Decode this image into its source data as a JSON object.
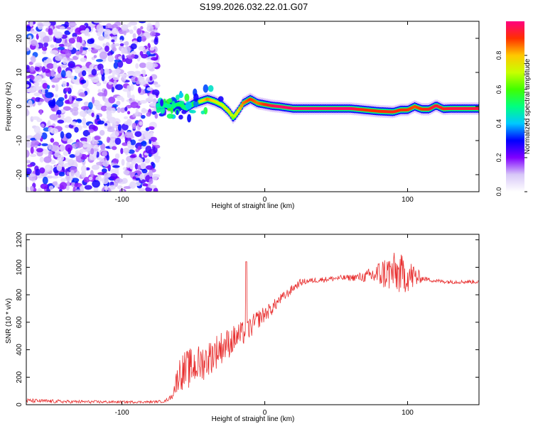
{
  "title": "S199.2026.032.22.01.G07",
  "chart_data": [
    {
      "type": "heatmap",
      "name": "spectrogram",
      "xlabel": "Height of straight line (km)",
      "ylabel": "Frequency (Hz)",
      "xlim": [
        -167,
        150
      ],
      "ylim": [
        -25,
        25
      ],
      "xticks": [
        -100,
        0,
        100
      ],
      "xtick_labels": [
        "-100",
        "0",
        "100"
      ],
      "yticks": [
        -20,
        -10,
        0,
        10,
        20
      ],
      "ytick_labels": [
        "-20",
        "-10",
        "0",
        "10",
        "20"
      ],
      "noise_region_x": [
        -167,
        -75
      ],
      "ridge": {
        "x": [
          -75,
          -70,
          -65,
          -60,
          -55,
          -50,
          -45,
          -40,
          -35,
          -30,
          -25,
          -22,
          -18,
          -15,
          -10,
          -5,
          0,
          5,
          10,
          20,
          40,
          60,
          70,
          80,
          90,
          95,
          100,
          105,
          110,
          115,
          120,
          125,
          130,
          140,
          150
        ],
        "y": [
          0.2,
          0.5,
          -0.2,
          0.6,
          -0.5,
          0.8,
          1.5,
          2.2,
          1.5,
          0.5,
          -1.5,
          -3.3,
          -1.0,
          1.0,
          2.2,
          1.0,
          0.6,
          0.2,
          0,
          -0.6,
          -0.6,
          -0.6,
          -1.0,
          -1.4,
          -1.6,
          -1.0,
          -1.0,
          0.0,
          -0.8,
          -0.8,
          0.3,
          -0.7,
          -0.6,
          -0.6,
          -0.6
        ],
        "amp": [
          0.45,
          0.5,
          0.45,
          0.55,
          0.5,
          0.55,
          0.7,
          0.85,
          0.75,
          0.7,
          0.75,
          0.65,
          0.8,
          0.85,
          0.9,
          0.85,
          0.9,
          0.95,
          0.98,
          0.98,
          0.98,
          0.98,
          0.9,
          0.9,
          0.92,
          0.9,
          0.9,
          0.88,
          0.9,
          0.92,
          0.95,
          0.92,
          0.95,
          0.95,
          0.95
        ]
      },
      "colorbar": {
        "label": "Normalized spectral amplitude",
        "range": [
          0,
          1
        ],
        "ticks": [
          0.0,
          0.2,
          0.4,
          0.6,
          0.8
        ],
        "tick_labels": [
          "0.0",
          "0.2",
          "0.4",
          "0.6",
          "0.8"
        ],
        "colors": [
          "#ffffff",
          "#d8c8f8",
          "#8000ff",
          "#0000ff",
          "#00c8ff",
          "#00ff80",
          "#40ff00",
          "#c8ff00",
          "#ffc800",
          "#ff3000",
          "#ff0080"
        ]
      }
    },
    {
      "type": "line",
      "name": "snr",
      "xlabel": "Height of straight line (km)",
      "ylabel": "SNR (10 * v/v)",
      "xlim": [
        -167,
        150
      ],
      "ylim": [
        0,
        1240
      ],
      "xticks": [
        -100,
        0,
        100
      ],
      "xtick_labels": [
        "-100",
        "0",
        "100"
      ],
      "yticks": [
        0,
        200,
        400,
        600,
        800,
        1000,
        1200
      ],
      "ytick_labels": [
        "0",
        "200",
        "400",
        "600",
        "800",
        "1000",
        "1200"
      ],
      "color": "#e83030",
      "series": [
        {
          "name": "SNR",
          "x": [
            -167,
            -140,
            -110,
            -80,
            -70,
            -65,
            -60,
            -55,
            -50,
            -45,
            -40,
            -35,
            -30,
            -25,
            -20,
            -15,
            -10,
            -5,
            0,
            5,
            10,
            15,
            20,
            25,
            30,
            40,
            50,
            60,
            70,
            75,
            80,
            85,
            90,
            95,
            100,
            105,
            110,
            115,
            120,
            130,
            140,
            150
          ],
          "y": [
            30,
            22,
            20,
            20,
            25,
            60,
            230,
            250,
            280,
            300,
            330,
            380,
            420,
            450,
            490,
            520,
            560,
            620,
            660,
            700,
            760,
            800,
            850,
            890,
            900,
            910,
            920,
            925,
            930,
            940,
            950,
            960,
            960,
            950,
            940,
            930,
            920,
            910,
            900,
            895,
            895,
            895
          ],
          "amplitude": [
            15,
            12,
            10,
            8,
            10,
            20,
            120,
            150,
            140,
            140,
            130,
            130,
            120,
            110,
            100,
            90,
            80,
            70,
            60,
            50,
            40,
            35,
            30,
            25,
            20,
            20,
            20,
            22,
            40,
            70,
            100,
            130,
            150,
            150,
            120,
            100,
            20,
            15,
            15,
            15,
            15,
            15
          ]
        }
      ],
      "spike": {
        "x": -13,
        "y": 1040
      }
    }
  ]
}
